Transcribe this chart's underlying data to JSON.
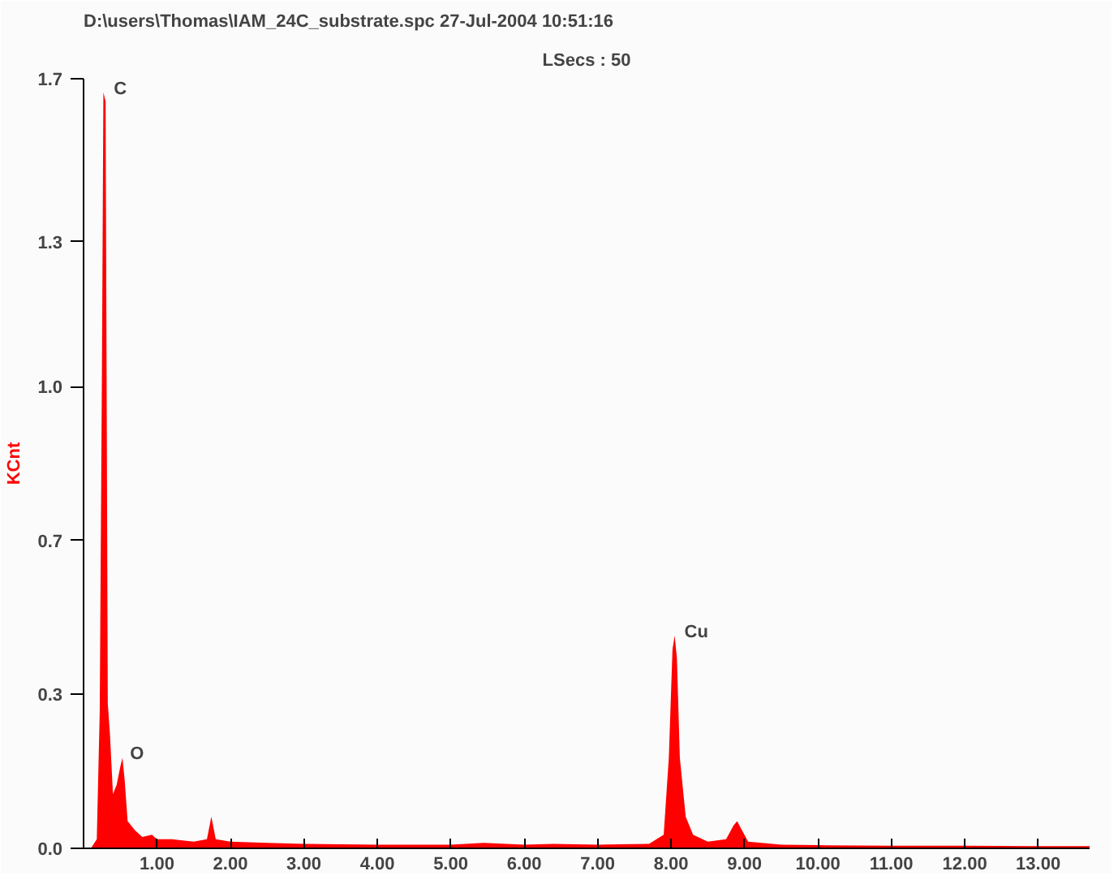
{
  "chart_data": {
    "type": "area",
    "title": "D:\\users\\Thomas\\IAM_24C_substrate.spc  27-Jul-2004 10:51:16",
    "subtitle": "LSecs : 50",
    "ylabel": "KCnt",
    "x": [
      0.1,
      0.18,
      0.22,
      0.25,
      0.27,
      0.3,
      0.33,
      0.36,
      0.4,
      0.45,
      0.5,
      0.53,
      0.56,
      0.6,
      0.7,
      0.8,
      0.93,
      1.0,
      1.2,
      1.5,
      1.68,
      1.74,
      1.8,
      2.0,
      2.5,
      3.0,
      4.0,
      5.0,
      5.45,
      6.0,
      6.4,
      7.0,
      7.7,
      7.9,
      7.97,
      8.02,
      8.05,
      8.08,
      8.12,
      8.2,
      8.3,
      8.5,
      8.75,
      8.85,
      8.9,
      8.95,
      9.05,
      9.5,
      10.0,
      11.0,
      12.0,
      13.0,
      13.7
    ],
    "series": [
      {
        "color": "#ff0000",
        "values": [
          0,
          0.02,
          0.3,
          1.05,
          1.67,
          1.65,
          0.32,
          0.25,
          0.12,
          0.14,
          0.18,
          0.2,
          0.15,
          0.06,
          0.04,
          0.025,
          0.03,
          0.02,
          0.02,
          0.015,
          0.02,
          0.07,
          0.02,
          0.015,
          0.012,
          0.01,
          0.008,
          0.008,
          0.012,
          0.008,
          0.01,
          0.008,
          0.01,
          0.03,
          0.2,
          0.44,
          0.47,
          0.42,
          0.2,
          0.07,
          0.03,
          0.015,
          0.02,
          0.05,
          0.06,
          0.045,
          0.015,
          0.008,
          0.007,
          0.006,
          0.006,
          0.005,
          0.005
        ]
      }
    ],
    "xlim": [
      0,
      13.7
    ],
    "ylim": [
      0,
      1.7
    ],
    "xticks": [
      {
        "value": 1,
        "label": "1.00"
      },
      {
        "value": 2,
        "label": "2.00"
      },
      {
        "value": 3,
        "label": "3.00"
      },
      {
        "value": 4,
        "label": "4.00"
      },
      {
        "value": 5,
        "label": "5.00"
      },
      {
        "value": 6,
        "label": "6.00"
      },
      {
        "value": 7,
        "label": "7.00"
      },
      {
        "value": 8,
        "label": "8.00"
      },
      {
        "value": 9,
        "label": "9.00"
      },
      {
        "value": 10,
        "label": "10.00"
      },
      {
        "value": 11,
        "label": "11.00"
      },
      {
        "value": 12,
        "label": "12.00"
      },
      {
        "value": 13,
        "label": "13.00"
      }
    ],
    "yticks": [
      {
        "value": 0,
        "label": "0.0"
      },
      {
        "value": 0.34,
        "label": "0.3"
      },
      {
        "value": 0.68,
        "label": "0.7"
      },
      {
        "value": 1.02,
        "label": "1.0"
      },
      {
        "value": 1.34,
        "label": "1.3"
      },
      {
        "value": 1.7,
        "label": "1.7"
      }
    ],
    "annotations": [
      {
        "text": "C",
        "x": 0.28,
        "y": 1.67
      },
      {
        "text": "O",
        "x": 0.5,
        "y": 0.2
      },
      {
        "text": "Cu",
        "x": 8.05,
        "y": 0.47
      }
    ],
    "grid": false
  }
}
